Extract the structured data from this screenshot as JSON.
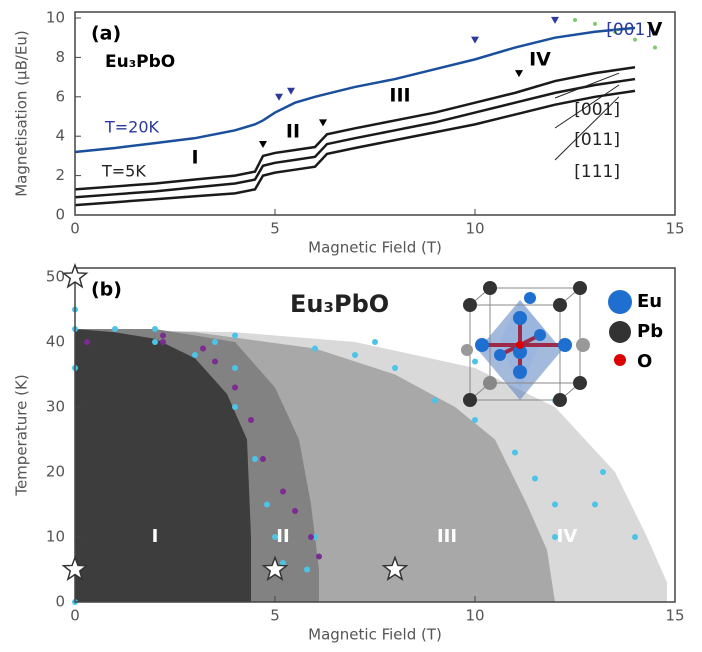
{
  "chart_data": [
    {
      "type": "line",
      "panel": "(a)",
      "title": "Eu₃PbO",
      "xlabel": "Magnetic Field (T)",
      "ylabel": "Magnetisation (μB/Eu)",
      "xlim": [
        0,
        15
      ],
      "ylim": [
        0,
        10
      ],
      "xticks": [
        0,
        5,
        10,
        15
      ],
      "yticks": [
        0,
        2,
        4,
        6,
        8,
        10
      ],
      "x": [
        0,
        1,
        2,
        3,
        4,
        4.5,
        4.7,
        5,
        5.5,
        6,
        6.3,
        7,
        8,
        9,
        10,
        11,
        12,
        13,
        14
      ],
      "series": [
        {
          "name": "[001]",
          "color": "#1a4f9c",
          "values": [
            3.2,
            3.4,
            3.65,
            3.9,
            4.3,
            4.6,
            4.8,
            5.2,
            5.7,
            6.0,
            6.15,
            6.5,
            6.9,
            7.4,
            7.9,
            8.5,
            9.0,
            9.3,
            9.5
          ]
        },
        {
          "name": "[001]",
          "color": "#1a1a1a",
          "values": [
            1.3,
            1.45,
            1.6,
            1.8,
            2.0,
            2.2,
            3.0,
            3.15,
            3.3,
            3.45,
            4.1,
            4.4,
            4.8,
            5.2,
            5.7,
            6.2,
            6.8,
            7.2,
            7.5
          ]
        },
        {
          "name": "[011]",
          "color": "#1a1a1a",
          "values": [
            0.9,
            1.05,
            1.2,
            1.4,
            1.6,
            1.8,
            2.5,
            2.65,
            2.8,
            2.95,
            3.6,
            3.9,
            4.3,
            4.7,
            5.2,
            5.7,
            6.2,
            6.6,
            6.9
          ]
        },
        {
          "name": "[111]",
          "color": "#1a1a1a",
          "values": [
            0.5,
            0.65,
            0.8,
            0.95,
            1.1,
            1.3,
            2.0,
            2.15,
            2.3,
            2.45,
            3.1,
            3.4,
            3.8,
            4.2,
            4.6,
            5.1,
            5.6,
            6.0,
            6.3
          ]
        }
      ],
      "transitions": {
        "x": [
          5.1,
          5.4,
          10,
          12,
          4.7,
          6.2,
          11.1
        ],
        "y": [
          5.7,
          6.0,
          8.6,
          9.6,
          3.3,
          4.4,
          6.9
        ],
        "colors": [
          "#2a3a9c",
          "#2a3a9c",
          "#2a3a9c",
          "#2a3a9c",
          "#000",
          "#000",
          "#000"
        ]
      },
      "dots": {
        "color": "#7ccc6a",
        "x": [
          12.5,
          13,
          13.5,
          14,
          14.5
        ],
        "y": [
          9.9,
          9.7,
          9.3,
          8.9,
          8.5
        ]
      },
      "annotations": [
        "T=20K",
        "T=5K",
        "I",
        "II",
        "III",
        "IV",
        "V"
      ]
    },
    {
      "type": "area",
      "panel": "(b)",
      "title": "Eu₃PbO",
      "xlabel": "Magnetic Field (T)",
      "ylabel": "Temperature (K)",
      "xlim": [
        0,
        15
      ],
      "ylim": [
        0,
        50
      ],
      "xticks": [
        0,
        5,
        10,
        15
      ],
      "yticks": [
        0,
        10,
        20,
        30,
        40,
        50
      ],
      "regions": [
        {
          "name": "IV",
          "color": "#d9d9d9",
          "x": [
            0,
            4,
            7,
            10,
            12,
            13.5,
            14.3,
            14.8,
            14.8
          ],
          "y": [
            42,
            41.5,
            40,
            36,
            30,
            20,
            10,
            3,
            0
          ]
        },
        {
          "name": "III",
          "color": "#a8a8a8",
          "x": [
            0,
            3,
            6,
            8,
            9.5,
            10.5,
            11.3,
            11.8,
            12
          ],
          "y": [
            42,
            41.5,
            39,
            35,
            30,
            25,
            15,
            8,
            0
          ]
        },
        {
          "name": "II",
          "color": "#828282",
          "x": [
            0,
            2,
            4,
            5,
            5.6,
            5.9,
            6.1,
            6.1
          ],
          "y": [
            42,
            42,
            40,
            33,
            25,
            15,
            5,
            0
          ]
        },
        {
          "name": "I",
          "color": "#3d3d3d",
          "x": [
            0,
            1,
            2,
            3,
            3.8,
            4.3,
            4.4,
            4.4
          ],
          "y": [
            42,
            41.5,
            40.5,
            37.5,
            32,
            25,
            10,
            0
          ]
        }
      ],
      "points": [
        {
          "color": "#4cc3e8",
          "x": [
            0,
            0,
            0,
            0,
            1,
            2,
            3,
            4,
            4.5,
            4.8,
            5,
            5.2,
            2,
            4,
            6,
            7,
            8,
            9,
            10,
            11,
            11.5,
            12,
            12,
            13,
            14,
            6,
            5.8,
            4,
            3.5,
            7.5,
            10,
            12,
            13.2
          ],
          "y": [
            45,
            42,
            36,
            0,
            42,
            40,
            38,
            30,
            22,
            15,
            10,
            6,
            42,
            41,
            39,
            38,
            36,
            31,
            28,
            23,
            19,
            15,
            10,
            15,
            10,
            10,
            5,
            36,
            40,
            40,
            37,
            31,
            20
          ]
        },
        {
          "color": "#7b2c91",
          "x": [
            2.2,
            3.5,
            4,
            4.4,
            4.7,
            5.2,
            5.5,
            5.9,
            6.1,
            2.2,
            3.2,
            0.3
          ],
          "y": [
            40,
            37,
            33,
            28,
            22,
            17,
            14,
            10,
            7,
            41,
            39,
            40
          ]
        }
      ],
      "stars": {
        "x": [
          0,
          0,
          5,
          8
        ],
        "y": [
          50,
          5,
          5,
          5
        ]
      },
      "inset": {
        "legend": [
          "Eu",
          "Pb",
          "O"
        ]
      }
    }
  ]
}
